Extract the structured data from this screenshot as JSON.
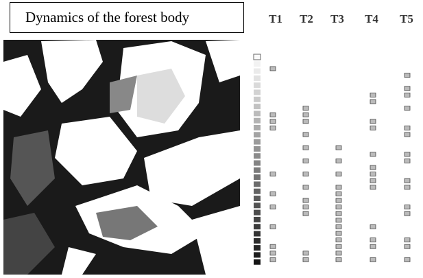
{
  "title": "Dynamics of the forest body",
  "columns": [
    "T1",
    "T2",
    "T3",
    "T4",
    "T5"
  ]
}
